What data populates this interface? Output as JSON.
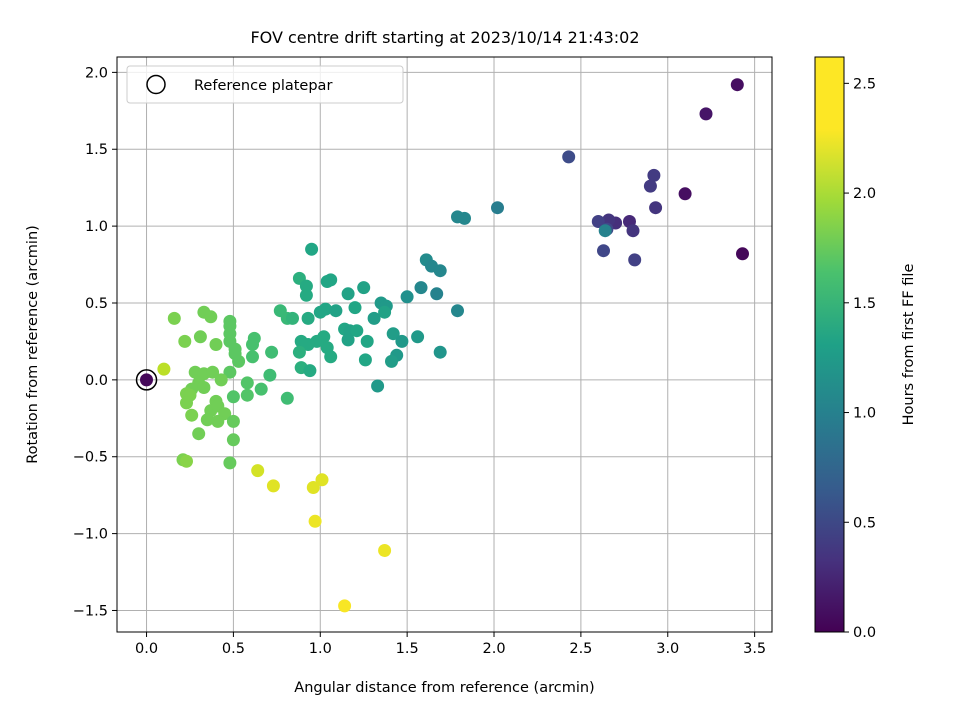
{
  "chart_data": {
    "type": "scatter",
    "title": "FOV centre drift starting at 2023/10/14 21:43:02",
    "xlabel": "Angular distance from reference (arcmin)",
    "ylabel": "Rotation from reference (arcmin)",
    "xlim": [
      -0.17,
      3.6
    ],
    "ylim": [
      -1.64,
      2.1
    ],
    "xticks": [
      0.0,
      0.5,
      1.0,
      1.5,
      2.0,
      2.5,
      3.0,
      3.5
    ],
    "xtick_labels": [
      "0.0",
      "0.5",
      "1.0",
      "1.5",
      "2.0",
      "2.5",
      "3.0",
      "3.5"
    ],
    "yticks": [
      -1.5,
      -1.0,
      -0.5,
      0.0,
      0.5,
      1.0,
      1.5,
      2.0
    ],
    "ytick_labels": [
      "−1.5",
      "−1.0",
      "−0.5",
      "0.0",
      "0.5",
      "1.0",
      "1.5",
      "2.0"
    ],
    "grid": true,
    "colormap": "viridis",
    "colorbar": {
      "label": "Hours from first FF file",
      "range": [
        0.0,
        2.62
      ],
      "ticks": [
        0.0,
        0.5,
        1.0,
        1.5,
        2.0,
        2.5
      ],
      "tick_labels": [
        "0.0",
        "0.5",
        "1.0",
        "1.5",
        "2.0",
        "2.5"
      ]
    },
    "legend": {
      "position": "top-left",
      "entries": [
        "Reference platepar"
      ]
    },
    "reference_point": [
      0.0,
      0.0
    ],
    "points": [
      [
        3.4,
        1.92,
        0.1
      ],
      [
        3.22,
        1.73,
        0.15
      ],
      [
        3.1,
        1.21,
        0.1
      ],
      [
        3.43,
        0.82,
        0.05
      ],
      [
        2.43,
        1.45,
        0.6
      ],
      [
        2.92,
        1.33,
        0.45
      ],
      [
        2.9,
        1.26,
        0.45
      ],
      [
        2.93,
        1.12,
        0.4
      ],
      [
        2.78,
        1.03,
        0.3
      ],
      [
        2.7,
        1.02,
        0.35
      ],
      [
        2.66,
        1.04,
        0.4
      ],
      [
        2.6,
        1.03,
        0.5
      ],
      [
        2.65,
        0.98,
        0.55
      ],
      [
        2.8,
        0.97,
        0.4
      ],
      [
        2.63,
        0.84,
        0.55
      ],
      [
        2.81,
        0.78,
        0.5
      ],
      [
        2.64,
        0.97,
        1.15
      ],
      [
        2.02,
        1.12,
        1.1
      ],
      [
        1.83,
        1.05,
        1.2
      ],
      [
        1.79,
        1.06,
        1.2
      ],
      [
        1.61,
        0.78,
        1.25
      ],
      [
        1.64,
        0.74,
        1.2
      ],
      [
        1.69,
        0.71,
        1.2
      ],
      [
        1.58,
        0.6,
        1.2
      ],
      [
        1.67,
        0.56,
        1.15
      ],
      [
        1.5,
        0.54,
        1.3
      ],
      [
        1.79,
        0.45,
        1.2
      ],
      [
        1.35,
        0.5,
        1.4
      ],
      [
        1.38,
        0.48,
        1.4
      ],
      [
        1.37,
        0.44,
        1.5
      ],
      [
        1.31,
        0.4,
        1.45
      ],
      [
        1.42,
        0.3,
        1.45
      ],
      [
        1.56,
        0.28,
        1.4
      ],
      [
        1.47,
        0.25,
        1.4
      ],
      [
        1.25,
        0.6,
        1.5
      ],
      [
        1.16,
        0.56,
        1.5
      ],
      [
        1.2,
        0.47,
        1.55
      ],
      [
        1.06,
        0.65,
        1.55
      ],
      [
        1.04,
        0.64,
        1.55
      ],
      [
        0.95,
        0.85,
        1.55
      ],
      [
        0.88,
        0.66,
        1.65
      ],
      [
        0.92,
        0.61,
        1.6
      ],
      [
        0.92,
        0.55,
        1.6
      ],
      [
        1.03,
        0.46,
        1.55
      ],
      [
        1.09,
        0.45,
        1.5
      ],
      [
        1.0,
        0.44,
        1.55
      ],
      [
        0.93,
        0.4,
        1.6
      ],
      [
        1.14,
        0.33,
        1.55
      ],
      [
        1.17,
        0.32,
        1.5
      ],
      [
        1.02,
        0.28,
        1.6
      ],
      [
        1.21,
        0.32,
        1.55
      ],
      [
        1.16,
        0.26,
        1.5
      ],
      [
        0.98,
        0.25,
        1.6
      ],
      [
        0.93,
        0.23,
        1.6
      ],
      [
        0.89,
        0.25,
        1.6
      ],
      [
        1.04,
        0.21,
        1.6
      ],
      [
        0.88,
        0.18,
        1.65
      ],
      [
        1.06,
        0.15,
        1.6
      ],
      [
        1.27,
        0.25,
        1.55
      ],
      [
        1.26,
        0.13,
        1.55
      ],
      [
        0.89,
        0.08,
        1.65
      ],
      [
        0.94,
        0.06,
        1.6
      ],
      [
        1.44,
        0.16,
        1.4
      ],
      [
        1.41,
        0.12,
        1.45
      ],
      [
        1.69,
        0.18,
        1.35
      ],
      [
        1.33,
        -0.04,
        1.4
      ],
      [
        0.77,
        0.45,
        1.75
      ],
      [
        0.81,
        0.4,
        1.75
      ],
      [
        0.84,
        0.4,
        1.7
      ],
      [
        0.62,
        0.27,
        1.85
      ],
      [
        0.72,
        0.18,
        1.8
      ],
      [
        0.61,
        0.15,
        1.85
      ],
      [
        0.61,
        0.23,
        1.85
      ],
      [
        0.71,
        0.03,
        1.8
      ],
      [
        0.58,
        -0.02,
        1.9
      ],
      [
        0.66,
        -0.06,
        1.85
      ],
      [
        0.58,
        -0.1,
        1.9
      ],
      [
        0.5,
        -0.11,
        1.9
      ],
      [
        0.81,
        -0.12,
        1.8
      ],
      [
        0.48,
        0.38,
        1.95
      ],
      [
        0.48,
        0.35,
        1.95
      ],
      [
        0.48,
        0.3,
        1.95
      ],
      [
        0.48,
        0.25,
        1.95
      ],
      [
        0.51,
        0.2,
        1.95
      ],
      [
        0.53,
        0.12,
        1.95
      ],
      [
        0.48,
        0.05,
        1.95
      ],
      [
        0.51,
        0.17,
        1.95
      ],
      [
        0.33,
        0.44,
        2.05
      ],
      [
        0.37,
        0.41,
        2.05
      ],
      [
        0.16,
        0.4,
        2.1
      ],
      [
        0.31,
        0.28,
        2.05
      ],
      [
        0.22,
        0.25,
        2.1
      ],
      [
        0.4,
        0.23,
        2.05
      ],
      [
        0.28,
        0.05,
        2.05
      ],
      [
        0.33,
        0.04,
        2.05
      ],
      [
        0.38,
        0.05,
        2.05
      ],
      [
        0.43,
        0.0,
        2.05
      ],
      [
        0.3,
        -0.02,
        2.05
      ],
      [
        0.33,
        -0.05,
        2.05
      ],
      [
        0.26,
        -0.06,
        2.05
      ],
      [
        0.23,
        -0.09,
        2.1
      ],
      [
        0.25,
        -0.1,
        2.1
      ],
      [
        0.23,
        -0.15,
        2.1
      ],
      [
        0.4,
        -0.14,
        2.05
      ],
      [
        0.37,
        -0.2,
        2.05
      ],
      [
        0.41,
        -0.17,
        2.05
      ],
      [
        0.45,
        -0.22,
        2.05
      ],
      [
        0.26,
        -0.23,
        2.1
      ],
      [
        0.35,
        -0.26,
        2.05
      ],
      [
        0.41,
        -0.27,
        2.05
      ],
      [
        0.5,
        -0.27,
        2.0
      ],
      [
        0.3,
        -0.35,
        2.05
      ],
      [
        0.5,
        -0.39,
        2.0
      ],
      [
        0.21,
        -0.52,
        2.1
      ],
      [
        0.23,
        -0.53,
        2.15
      ],
      [
        0.48,
        -0.54,
        2.0
      ],
      [
        0.1,
        0.07,
        2.35
      ],
      [
        0.64,
        -0.59,
        2.45
      ],
      [
        0.73,
        -0.69,
        2.5
      ],
      [
        1.01,
        -0.65,
        2.5
      ],
      [
        0.96,
        -0.7,
        2.5
      ],
      [
        0.97,
        -0.92,
        2.55
      ],
      [
        1.37,
        -1.11,
        2.55
      ],
      [
        1.14,
        -1.47,
        2.6
      ],
      [
        0.0,
        0.0,
        0.05
      ]
    ]
  }
}
